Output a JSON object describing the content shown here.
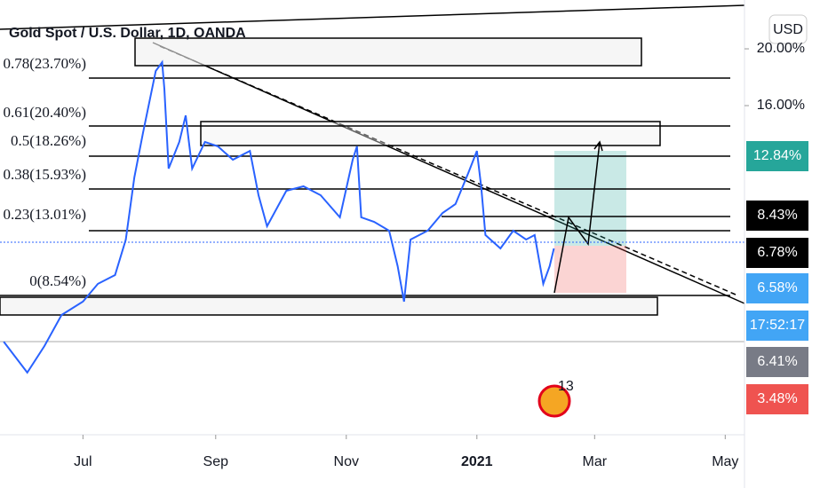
{
  "chart_data": {
    "type": "line",
    "title": "Gold Spot / U.S. Dollar, 1D, OANDA",
    "x": [
      -7,
      4,
      12,
      20,
      30,
      37,
      45,
      50,
      54,
      58,
      64,
      67,
      68,
      70,
      75,
      78,
      81,
      87,
      93,
      100,
      108,
      112,
      116,
      125,
      133,
      141,
      150,
      156,
      158,
      160,
      166,
      173,
      177,
      180,
      183,
      191,
      198,
      204,
      210,
      214,
      216,
      218,
      225,
      231,
      237,
      241,
      245,
      248,
      250
    ],
    "values": [
      -0.63,
      -2.81,
      -0.94,
      1.25,
      2.19,
      3.44,
      4.06,
      6.56,
      10.94,
      14.06,
      18.44,
      19.06,
      17.19,
      11.56,
      13.44,
      15.31,
      11.56,
      13.44,
      13.13,
      12.19,
      12.81,
      9.69,
      7.5,
      10,
      10.31,
      9.69,
      8.13,
      12.19,
      13.13,
      8.13,
      7.81,
      7.19,
      4.69,
      2.19,
      6.56,
      7.19,
      8.44,
      9.06,
      11.25,
      12.81,
      10.31,
      6.88,
      5.94,
      7.19,
      6.56,
      6.88,
      3.44,
      4.69,
      5.94
    ],
    "color": "#2962ff",
    "xlim": [
      -8.75,
      339
    ],
    "xticks": [
      {
        "value": 30,
        "label": "Jul"
      },
      {
        "value": 92,
        "label": "Sep"
      },
      {
        "value": 153,
        "label": "Nov"
      },
      {
        "value": 214,
        "label": "2021"
      },
      {
        "value": 269,
        "label": "Mar"
      },
      {
        "value": 330,
        "label": "May"
      }
    ],
    "ylim": [
      -7.19,
      23.44
    ],
    "yticks": [
      {
        "value": 20,
        "label": "20.00%"
      },
      {
        "value": 16,
        "label": "16.00%"
      }
    ],
    "fib_levels": [
      "0.78(23.70%)",
      "0.61(20.40%)",
      "0.5(18.26%)",
      "0.38(15.93%)",
      "0.23(13.01%)",
      "0(8.54%)"
    ],
    "price_tags": [
      "12.84%",
      "8.43%",
      "6.78%",
      "6.58%",
      "17:52:17",
      "6.41%",
      "3.48%"
    ],
    "currency_button": "USD",
    "badge": "13"
  }
}
